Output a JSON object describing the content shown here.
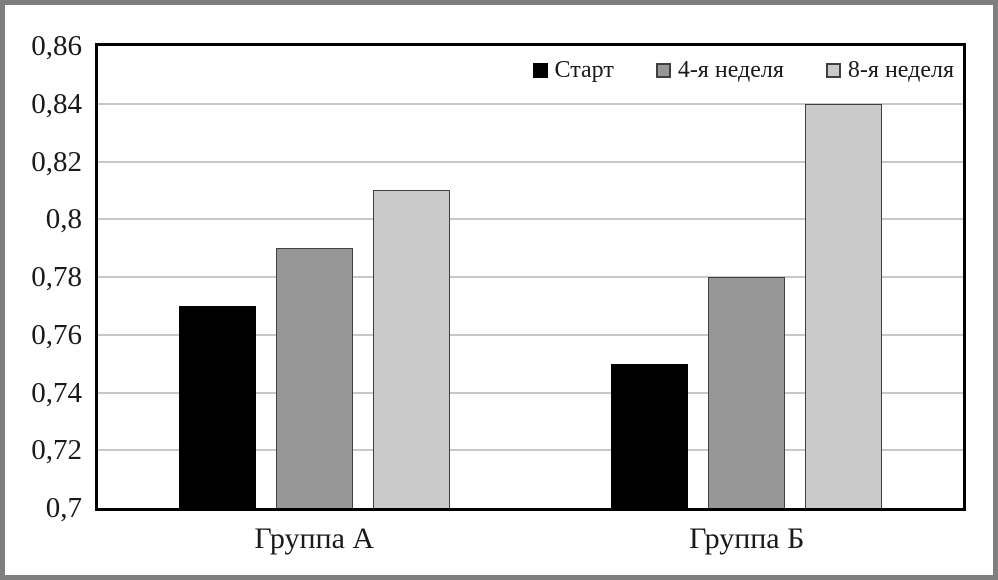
{
  "chart_data": {
    "type": "bar",
    "categories": [
      "Группа А",
      "Группа Б"
    ],
    "series": [
      {
        "name": "Старт",
        "color": "#000000",
        "border": "#000000",
        "values": [
          0.77,
          0.75
        ]
      },
      {
        "name": "4-я неделя",
        "color": "#979797",
        "border": "#404040",
        "values": [
          0.79,
          0.78
        ]
      },
      {
        "name": "8-я неделя",
        "color": "#cacaca",
        "border": "#404040",
        "values": [
          0.81,
          0.84
        ]
      }
    ],
    "title": "",
    "xlabel": "",
    "ylabel": "",
    "ylim": [
      0.7,
      0.86
    ],
    "ytick_step": 0.02,
    "yticks": [
      0.86,
      0.84,
      0.82,
      0.8,
      0.78,
      0.76,
      0.74,
      0.72,
      0.7
    ],
    "ytick_labels": [
      "0,86",
      "0,84",
      "0,82",
      "0,8",
      "0,78",
      "0,76",
      "0,74",
      "0,72",
      "0,7"
    ],
    "grid": true,
    "legend_position": "top-right-inside"
  },
  "colors": {
    "outer_frame": "#7f7f7f",
    "plot_border": "#000000",
    "gridline": "#c8c8c8",
    "background": "#ffffff",
    "text": "#1a1a1a"
  }
}
